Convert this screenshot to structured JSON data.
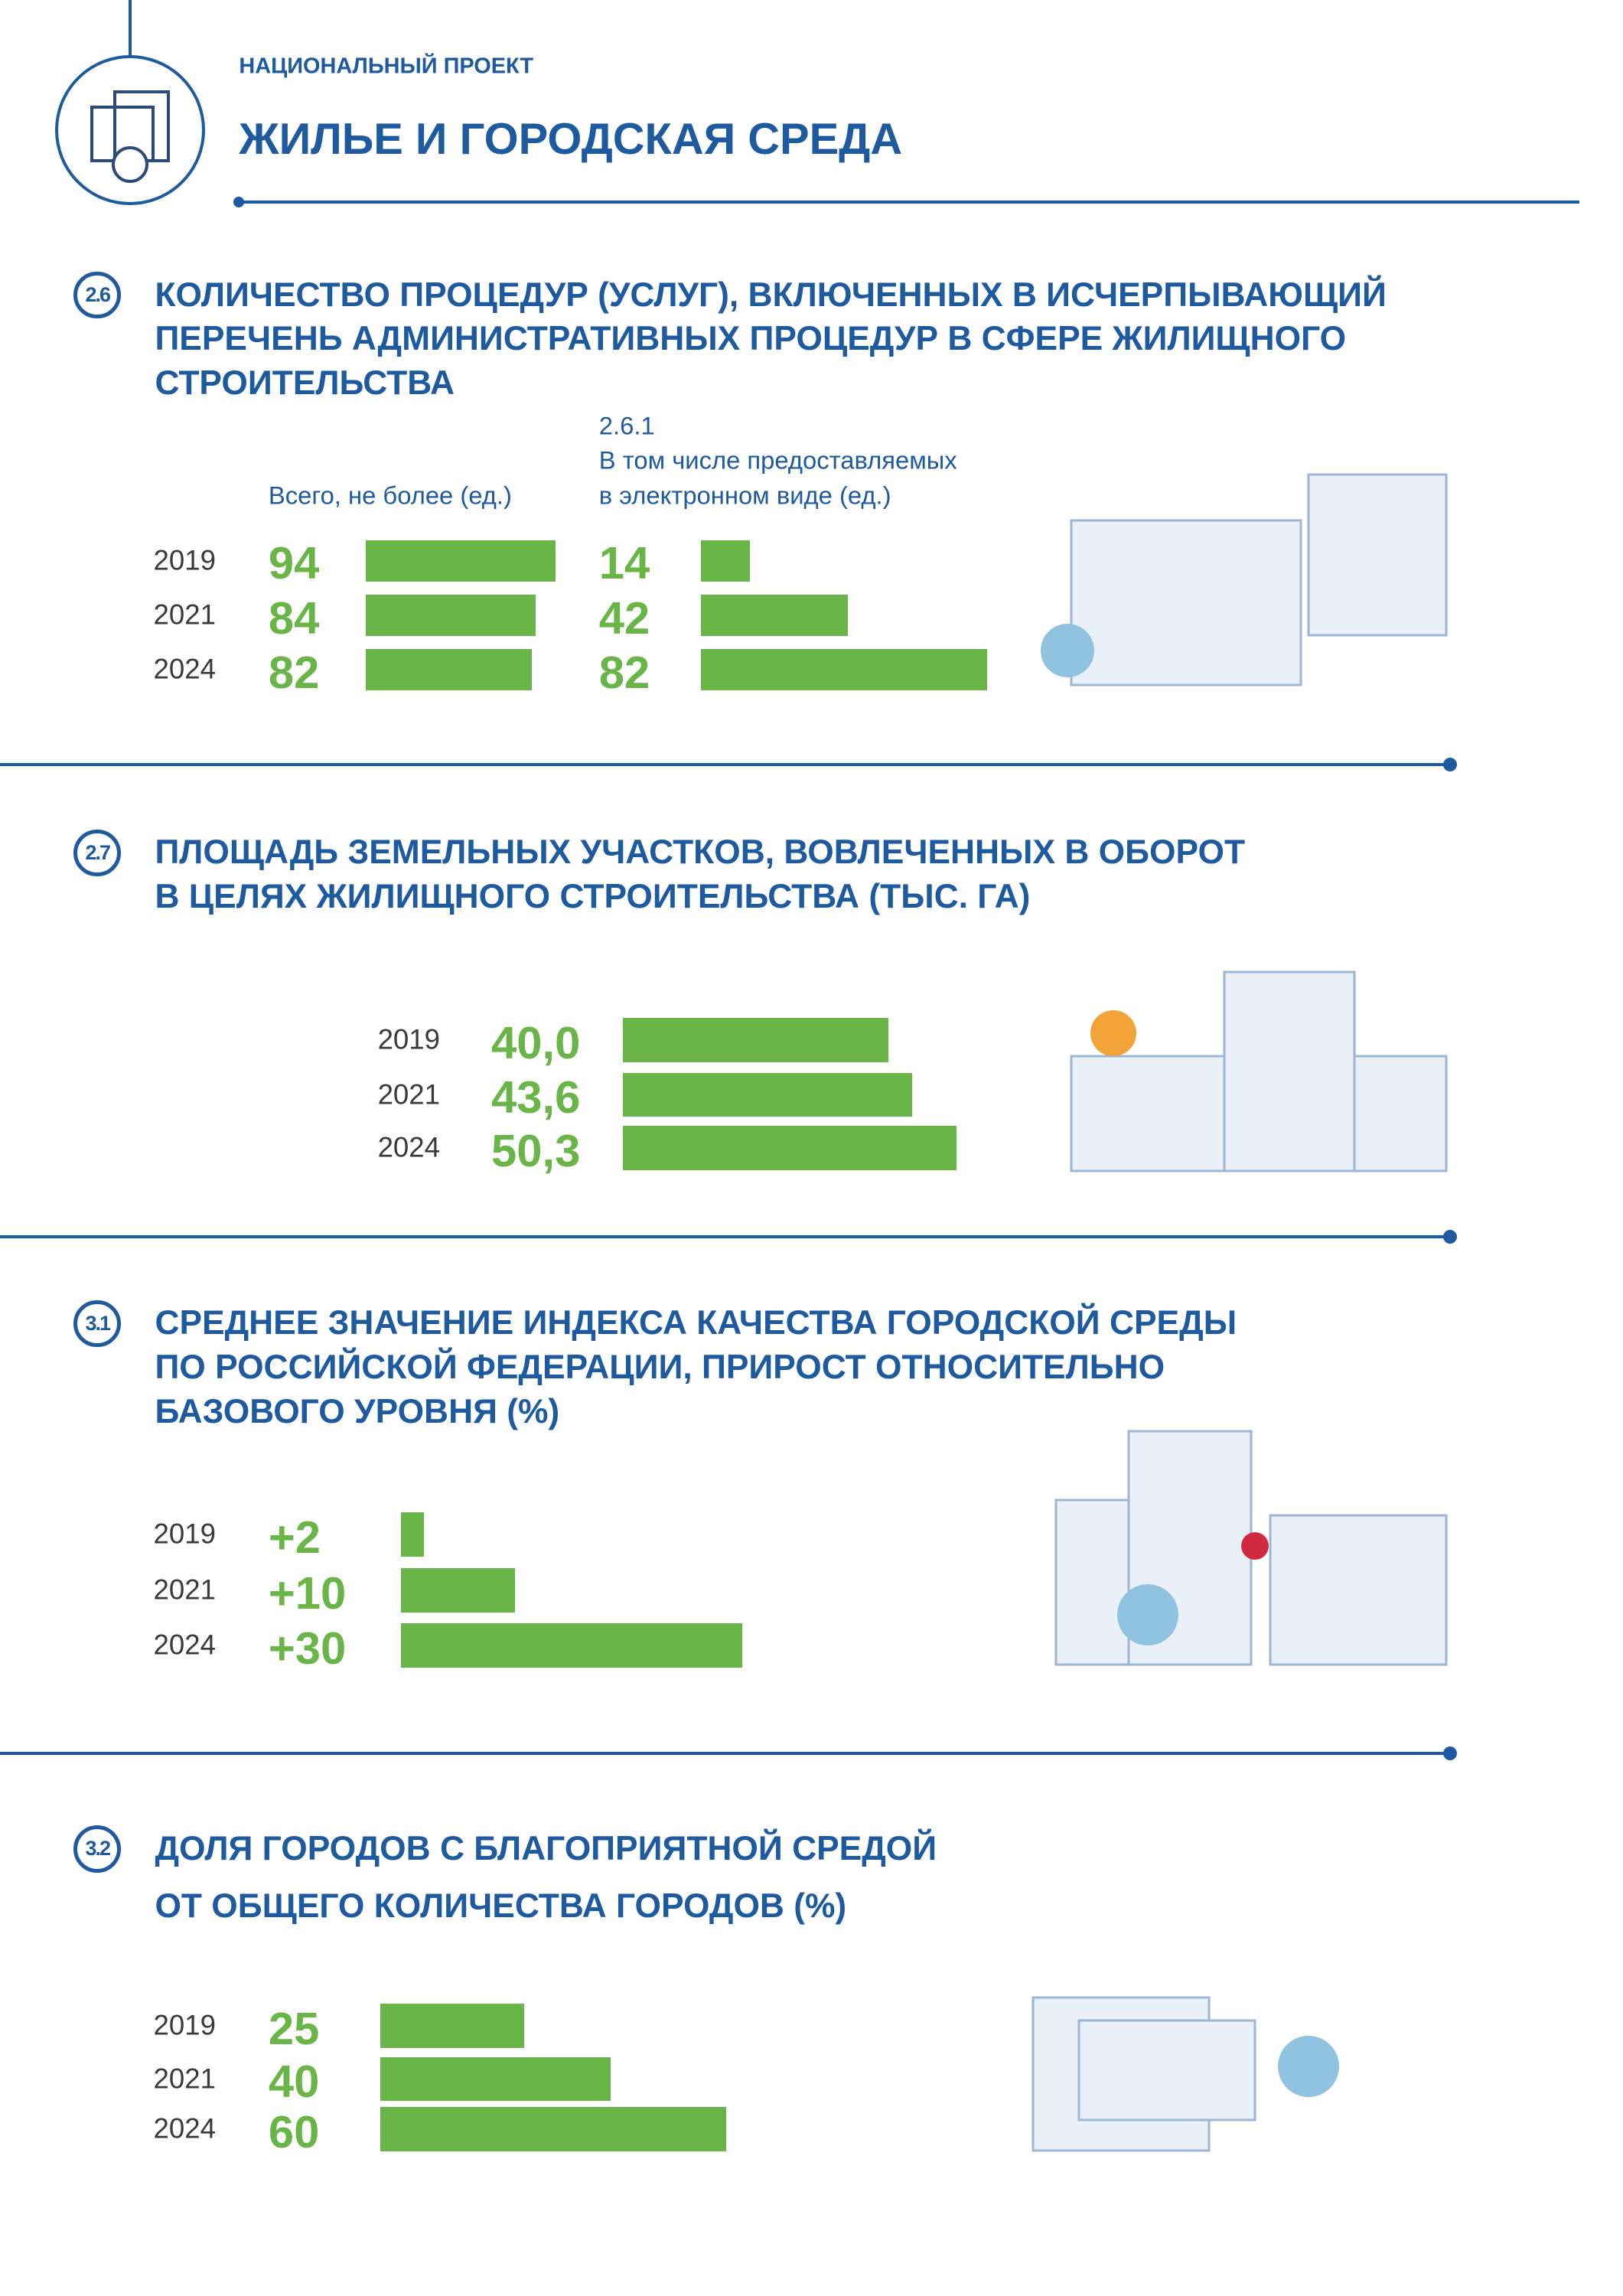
{
  "header": {
    "subtitle": "НАЦИОНАЛЬНЫЙ ПРОЕКТ",
    "title": "ЖИЛЬЕ И ГОРОДСКАЯ СРЕДА"
  },
  "chart_data": [
    {
      "type": "bar",
      "number": "2.6",
      "title_lines": [
        "КОЛИЧЕСТВО ПРОЦЕДУР (УСЛУГ), ВКЛЮЧЕННЫХ В ИСЧЕРПЫВАЮЩИЙ",
        "ПЕРЕЧЕНЬ АДМИНИСТРАТИВНЫХ ПРОЦЕДУР В СФЕРЕ ЖИЛИЩНОГО",
        "СТРОИТЕЛЬСТВА"
      ],
      "categories": [
        "2019",
        "2021",
        "2024"
      ],
      "color": "#6ab547",
      "series": [
        {
          "name_lines": [
            "Всего, не более (ед.)"
          ],
          "values": [
            94,
            84,
            82
          ]
        },
        {
          "code": "2.6.1",
          "name_lines": [
            "В том числе предоставляемых",
            "в электронном виде (ед.)"
          ],
          "values": [
            14,
            42,
            82
          ]
        }
      ]
    },
    {
      "type": "bar",
      "number": "2.7",
      "title_lines": [
        "ПЛОЩАДЬ ЗЕМЕЛЬНЫХ УЧАСТКОВ, ВОВЛЕЧЕННЫХ В ОБОРОТ",
        "В ЦЕЛЯХ ЖИЛИЩНОГО СТРОИТЕЛЬСТВА (ТЫС. ГА)"
      ],
      "categories": [
        "2019",
        "2021",
        "2024"
      ],
      "color": "#6ab547",
      "series": [
        {
          "values": [
            40.0,
            43.6,
            50.3
          ],
          "value_labels": [
            "40,0",
            "43,6",
            "50,3"
          ]
        }
      ]
    },
    {
      "type": "bar",
      "number": "3.1",
      "title_lines": [
        "СРЕДНЕЕ ЗНАЧЕНИЕ ИНДЕКСА КАЧЕСТВА ГОРОДСКОЙ СРЕДЫ",
        "ПО РОССИЙСКОЙ ФЕДЕРАЦИИ, ПРИРОСТ ОТНОСИТЕЛЬНО",
        "БАЗОВОГО УРОВНЯ (%)"
      ],
      "categories": [
        "2019",
        "2021",
        "2024"
      ],
      "color": "#6ab547",
      "series": [
        {
          "values": [
            2,
            10,
            30
          ],
          "value_labels": [
            "+2",
            "+10",
            "+30"
          ]
        }
      ]
    },
    {
      "type": "bar",
      "number": "3.2",
      "title_lines": [
        "ДОЛЯ ГОРОДОВ С БЛАГОПРИЯТНОЙ СРЕДОЙ",
        "ОТ ОБЩЕГО КОЛИЧЕСТВА ГОРОДОВ (%)"
      ],
      "categories": [
        "2019",
        "2021",
        "2024"
      ],
      "color": "#6ab547",
      "series": [
        {
          "values": [
            25,
            40,
            60
          ]
        }
      ]
    }
  ]
}
